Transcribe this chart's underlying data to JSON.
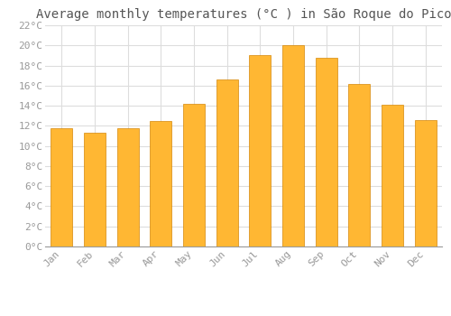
{
  "title": "Average monthly temperatures (°C ) in São Roque do Pico",
  "months": [
    "Jan",
    "Feb",
    "Mar",
    "Apr",
    "May",
    "Jun",
    "Jul",
    "Aug",
    "Sep",
    "Oct",
    "Nov",
    "Dec"
  ],
  "temperatures": [
    11.8,
    11.3,
    11.8,
    12.5,
    14.2,
    16.6,
    19.0,
    20.0,
    18.8,
    16.2,
    14.1,
    12.6
  ],
  "bar_color_top": "#FFB733",
  "bar_color_bottom": "#F5A000",
  "bar_edge_color": "#D4880A",
  "bar_width": 0.65,
  "ylim": [
    0,
    22
  ],
  "yticks": [
    0,
    2,
    4,
    6,
    8,
    10,
    12,
    14,
    16,
    18,
    20,
    22
  ],
  "background_color": "#FFFFFF",
  "grid_color": "#DDDDDD",
  "title_fontsize": 10,
  "tick_fontsize": 8,
  "tick_color": "#999999",
  "title_color": "#555555",
  "font_family": "monospace"
}
